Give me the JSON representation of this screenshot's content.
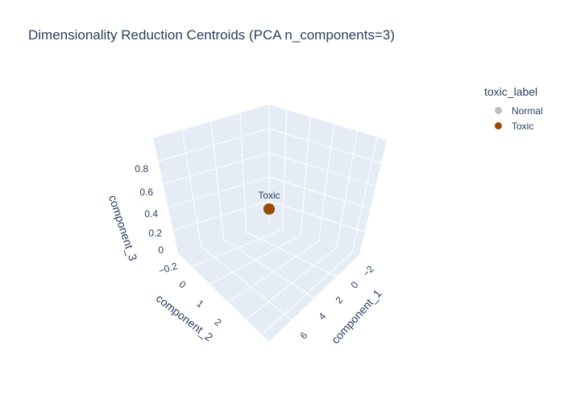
{
  "chart_data": {
    "type": "scatter3d",
    "title": "Dimensionality Reduction Centroids (PCA n_components=3)",
    "legend": {
      "title": "toxic_label",
      "placement": "top-right",
      "entries": [
        {
          "name": "Normal",
          "color": "#c0c0c0"
        },
        {
          "name": "Toxic",
          "color": "#964B00"
        }
      ]
    },
    "axes": {
      "x": {
        "label": "component_1",
        "ticks": [
          "−2",
          "0",
          "2",
          "4",
          "6"
        ]
      },
      "y": {
        "label": "component_2",
        "ticks": [
          "0",
          "1",
          "2"
        ]
      },
      "z": {
        "label": "component_3",
        "ticks": [
          "−0.2",
          "0",
          "0.2",
          "0.4",
          "0.6",
          "0.8"
        ]
      }
    },
    "points": [
      {
        "label": "Toxic",
        "series": "Toxic",
        "color": "#964B00"
      }
    ],
    "scene_background": "#e5ecf6",
    "grid": true
  }
}
